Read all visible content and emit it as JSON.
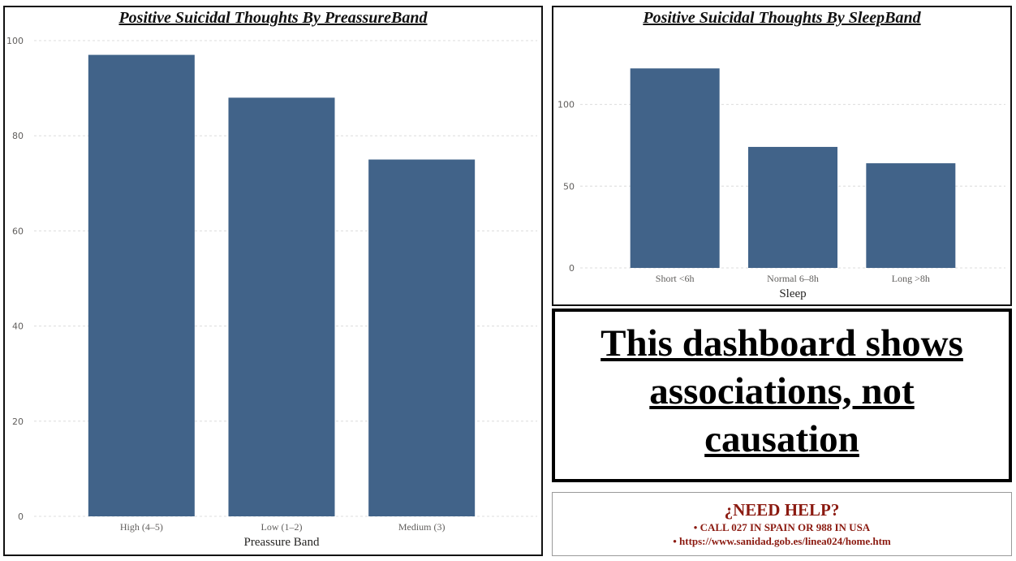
{
  "colors": {
    "bar": "#416389",
    "grid": "#dcdcdc",
    "help_text": "#8b1a10"
  },
  "chart_data": [
    {
      "type": "bar",
      "title": "Positive Suicidal Thoughts By PreassureBand",
      "categories": [
        "High (4–5)",
        "Low (1–2)",
        "Medium (3)"
      ],
      "values": [
        97,
        88,
        75
      ],
      "xlabel": "Preassure Band",
      "ylabel": "",
      "ylim": [
        0,
        100
      ],
      "yticks": [
        0,
        20,
        40,
        60,
        80,
        100
      ],
      "grid": true
    },
    {
      "type": "bar",
      "title": "Positive Suicidal Thoughts By SleepBand",
      "categories": [
        "Short <6h",
        "Normal 6–8h",
        "Long >8h"
      ],
      "values": [
        122,
        74,
        64
      ],
      "xlabel": "Sleep",
      "ylabel": "",
      "ylim": [
        0,
        140
      ],
      "yticks": [
        0,
        50,
        100
      ],
      "grid": true
    }
  ],
  "notice": {
    "line1": "This dashboard shows",
    "line2": "associations, not",
    "line3": "causation"
  },
  "help": {
    "title": "¿NEED HELP?",
    "line1": "• CALL 027 IN SPAIN OR 988 IN USA",
    "line2": "• https://www.sanidad.gob.es/linea024/home.htm"
  }
}
